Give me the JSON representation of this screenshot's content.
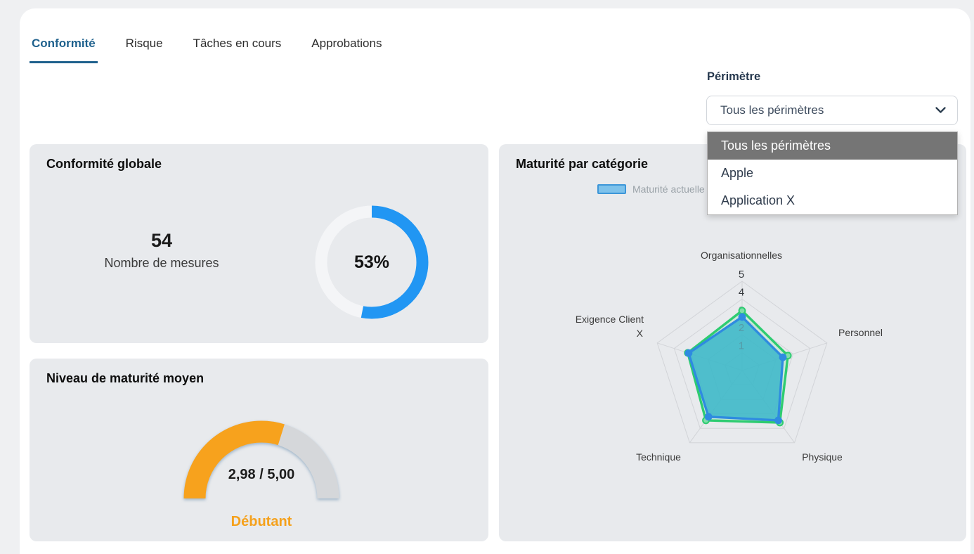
{
  "tabs": [
    {
      "label": "Conformité",
      "active": true
    },
    {
      "label": "Risque",
      "active": false
    },
    {
      "label": "Tâches en cours",
      "active": false
    },
    {
      "label": "Approbations",
      "active": false
    }
  ],
  "perimeter_filter": {
    "label": "Périmètre",
    "selected": "Tous les périmètres",
    "options": [
      {
        "label": "Tous les périmètres",
        "highlighted": true
      },
      {
        "label": "Apple",
        "highlighted": false
      },
      {
        "label": "Application X",
        "highlighted": false
      }
    ]
  },
  "cards": {
    "global_compliance": {
      "title": "Conformité globale",
      "count": "54",
      "count_label": "Nombre de mesures",
      "percent_text": "53%"
    },
    "avg_maturity": {
      "title": "Niveau de maturité moyen",
      "value_text": "2,98 / 5,00",
      "level": "Débutant"
    },
    "maturity_by_category": {
      "title": "Maturité par catégorie",
      "legend": [
        {
          "label": "Maturité actuelle",
          "swatch_fill": "#7ec2eb",
          "swatch_border": "#3d96d8"
        }
      ]
    }
  },
  "chart_data": [
    {
      "type": "donut",
      "title": "Conformité globale",
      "value": 53,
      "max": 100,
      "label": "53%",
      "color": "#2196f3",
      "track_color": "#f4f5f7"
    },
    {
      "type": "gauge",
      "title": "Niveau de maturité moyen",
      "value": 2.98,
      "max": 5,
      "label": "2,98 / 5,00",
      "level_label": "Débutant",
      "color": "#f7a21d",
      "track_color": "#d5d7da"
    },
    {
      "type": "radar",
      "title": "Maturité par catégorie",
      "categories": [
        "Organisationnelles",
        "Personnel",
        "Physique",
        "Technique",
        "Exigence Client X"
      ],
      "ticks": [
        1,
        2,
        3,
        4,
        5
      ],
      "max": 5,
      "grid": true,
      "legend_position": "top",
      "series": [
        {
          "name": "Maturité actuelle",
          "color": "#2e8be0",
          "fill": "rgba(61,183,202,0.88)",
          "marker_fill": "#2e8be0",
          "values": [
            3.0,
            2.4,
            3.45,
            3.2,
            3.15
          ]
        },
        {
          "name": "",
          "color": "#2ecc71",
          "fill": "rgba(141,228,176,0.30)",
          "marker_fill": "#7fdfa8",
          "values": [
            3.35,
            2.7,
            3.6,
            3.45,
            3.2
          ]
        }
      ]
    }
  ]
}
